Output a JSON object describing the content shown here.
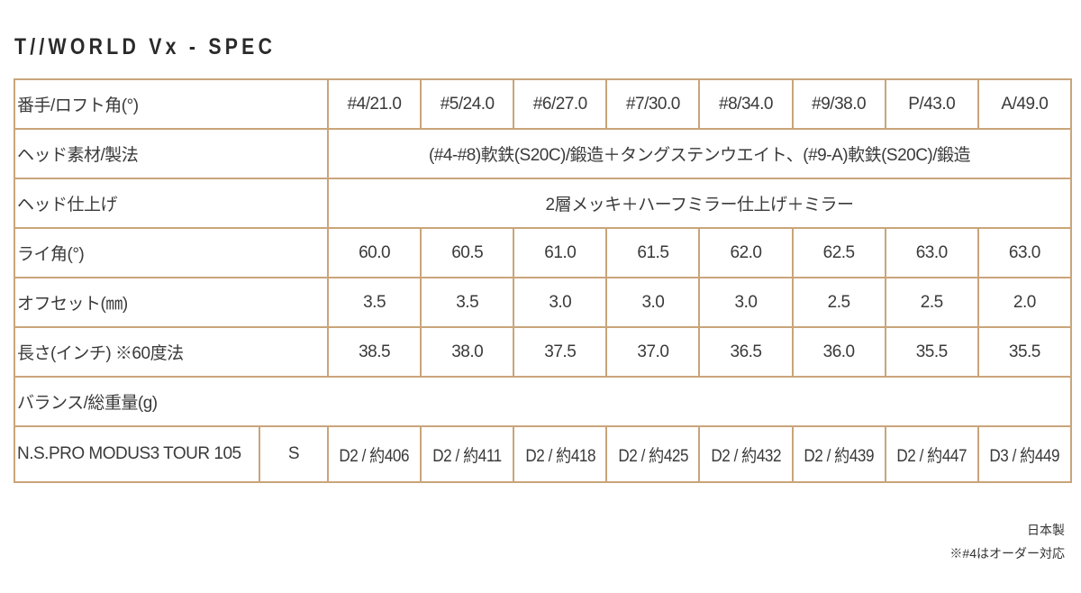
{
  "title": "T//WORLD Vx - SPEC",
  "rows": {
    "loft": {
      "label": "番手/ロフト角(°)",
      "values": [
        "#4/21.0",
        "#5/24.0",
        "#6/27.0",
        "#7/30.0",
        "#8/34.0",
        "#9/38.0",
        "P/43.0",
        "A/49.0"
      ]
    },
    "material": {
      "label": "ヘッド素材/製法",
      "value": "(#4-#8)軟鉄(S20C)/鍛造＋タングステンウエイト、(#9-A)軟鉄(S20C)/鍛造"
    },
    "finish": {
      "label": "ヘッド仕上げ",
      "value": "2層メッキ＋ハーフミラー仕上げ＋ミラー"
    },
    "lie": {
      "label": "ライ角(°)",
      "values": [
        "60.0",
        "60.5",
        "61.0",
        "61.5",
        "62.0",
        "62.5",
        "63.0",
        "63.0"
      ]
    },
    "offset": {
      "label": "オフセット(㎜)",
      "values": [
        "3.5",
        "3.5",
        "3.0",
        "3.0",
        "3.0",
        "2.5",
        "2.5",
        "2.0"
      ]
    },
    "length": {
      "label": "長さ(インチ) ※60度法",
      "values": [
        "38.5",
        "38.0",
        "37.5",
        "37.0",
        "36.5",
        "36.0",
        "35.5",
        "35.5"
      ]
    },
    "balance": {
      "label": "バランス/総重量(g)"
    },
    "shaft": {
      "name": "N.S.PRO MODUS3 TOUR 105",
      "flex": "S",
      "values": [
        "D2 / 約406",
        "D2 / 約411",
        "D2 / 約418",
        "D2 / 約425",
        "D2 / 約432",
        "D2 / 約439",
        "D2 / 約447",
        "D3 / 約449"
      ]
    }
  },
  "footer": {
    "made_in": "日本製",
    "note": "※#4はオーダー対応"
  }
}
